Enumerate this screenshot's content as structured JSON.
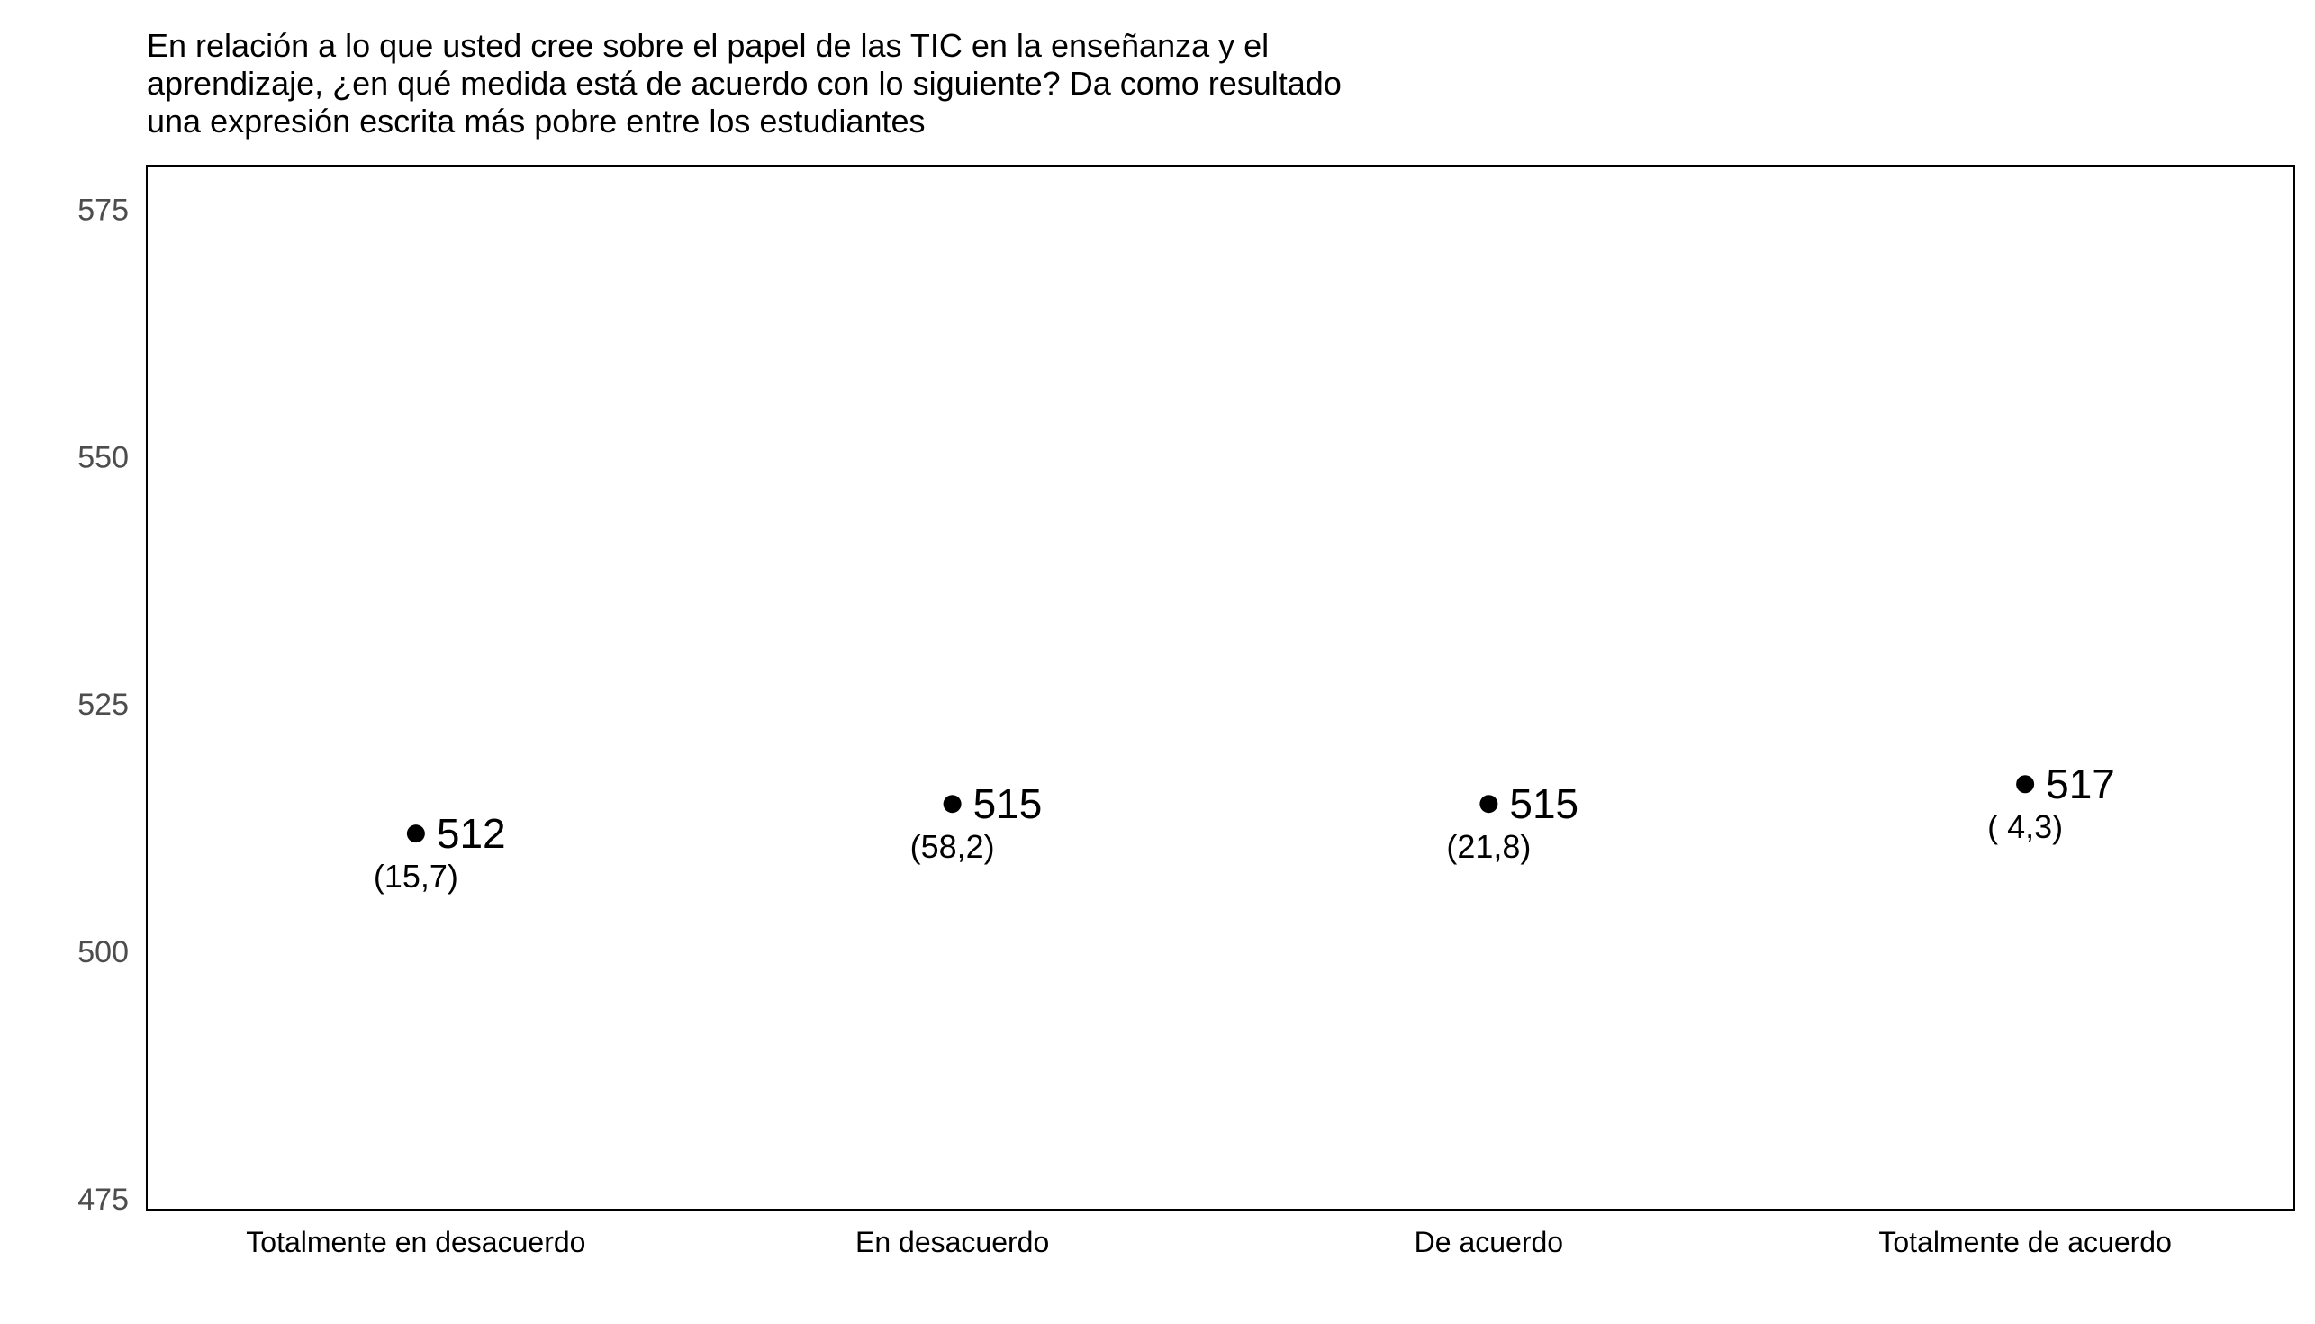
{
  "chart_data": {
    "type": "scatter",
    "title_lines": [
      "En relación a lo que usted cree sobre el papel de las TIC en la enseñanza y el",
      "aprendizaje, ¿en qué medida está de acuerdo con lo siguiente? Da como resultado",
      "una expresión escrita más pobre entre los estudiantes"
    ],
    "categories": [
      "Totalmente en desacuerdo",
      "En desacuerdo",
      "De acuerdo",
      "Totalmente de acuerdo"
    ],
    "values": [
      512,
      515,
      515,
      517
    ],
    "value_labels": [
      "512",
      "515",
      "515",
      "517"
    ],
    "percent_labels": [
      "(15,7)",
      "(58,2)",
      "(21,8)",
      "( 4,3)"
    ],
    "ylim": [
      474,
      579.5
    ],
    "yticks": [
      475,
      500,
      525,
      550,
      575
    ],
    "xlabel": "",
    "ylabel": "",
    "grid": false,
    "legend": "none",
    "colors": {
      "point": "#000000",
      "frame": "#000000",
      "tick_label": "#4d4d4d",
      "label": "#000000"
    }
  }
}
